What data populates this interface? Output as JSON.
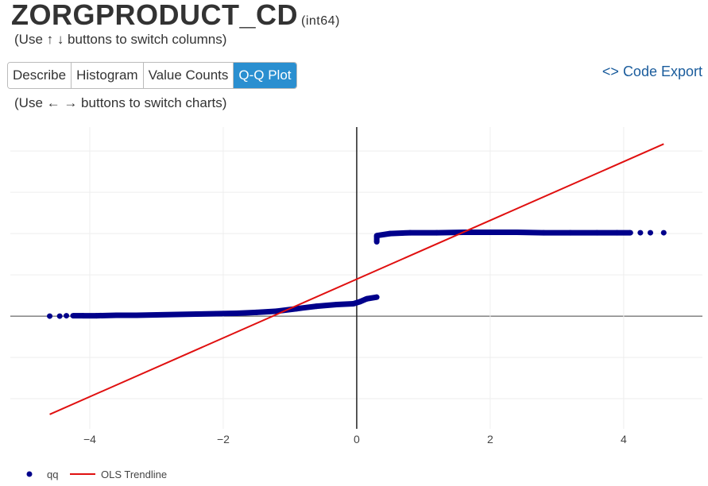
{
  "header": {
    "title": "ZORGPRODUCT_CD",
    "dtype": "(int64)",
    "column_hint": "(Use ↑ ↓ buttons to switch columns)",
    "chart_hint": "(Use ← → buttons to switch charts)"
  },
  "tabs": [
    {
      "label": "Describe"
    },
    {
      "label": "Histogram"
    },
    {
      "label": "Value Counts"
    },
    {
      "label": "Q-Q Plot",
      "active": true
    }
  ],
  "code_export": {
    "icon": "code-icon",
    "label": "Code Export"
  },
  "colors": {
    "points": "#00008b",
    "trend": "#e01010",
    "active_tab": "#2a8fd0"
  },
  "chart_data": {
    "type": "scatter",
    "xlim": [
      -5.19,
      5.18
    ],
    "ylim": [
      -2.73,
      4.58
    ],
    "xticks": [
      -4,
      -2,
      0,
      2,
      4
    ],
    "xtick_labels": [
      "−4",
      "−2",
      "0",
      "2",
      "4"
    ],
    "ygrid": [
      -2,
      -1,
      0,
      1,
      2,
      3,
      4
    ],
    "grid": true,
    "legend": {
      "placement": "bottom-left",
      "entries": [
        "qq",
        "OLS Trendline"
      ]
    },
    "series": [
      {
        "name": "qq",
        "type": "markers",
        "points": [
          [
            -4.6,
            0
          ],
          [
            -4.45,
            0
          ],
          [
            -4.35,
            0.01
          ],
          [
            -4.25,
            0.01
          ],
          [
            -4.1,
            0.01
          ],
          [
            -3.9,
            0.01
          ],
          [
            -3.6,
            0.02
          ],
          [
            -3.3,
            0.02
          ],
          [
            -3.0,
            0.03
          ],
          [
            -2.7,
            0.04
          ],
          [
            -2.4,
            0.05
          ],
          [
            -2.1,
            0.06
          ],
          [
            -1.8,
            0.07
          ],
          [
            -1.5,
            0.09
          ],
          [
            -1.2,
            0.12
          ],
          [
            -0.9,
            0.18
          ],
          [
            -0.6,
            0.24
          ],
          [
            -0.3,
            0.28
          ],
          [
            -0.05,
            0.3
          ],
          [
            0.05,
            0.35
          ],
          [
            0.15,
            0.42
          ],
          [
            0.3,
            0.46
          ],
          [
            0.3,
            1.8
          ],
          [
            0.3,
            1.95
          ],
          [
            0.5,
            2.0
          ],
          [
            0.8,
            2.02
          ],
          [
            1.2,
            2.02
          ],
          [
            1.6,
            2.03
          ],
          [
            2.0,
            2.03
          ],
          [
            2.4,
            2.03
          ],
          [
            2.8,
            2.02
          ],
          [
            3.2,
            2.02
          ],
          [
            3.6,
            2.02
          ],
          [
            3.9,
            2.02
          ],
          [
            4.1,
            2.02
          ],
          [
            4.25,
            2.02
          ],
          [
            4.4,
            2.02
          ],
          [
            4.6,
            2.02
          ]
        ]
      },
      {
        "name": "OLS Trendline",
        "type": "line",
        "points": [
          [
            -4.6,
            -2.38
          ],
          [
            4.6,
            4.17
          ]
        ]
      }
    ]
  }
}
